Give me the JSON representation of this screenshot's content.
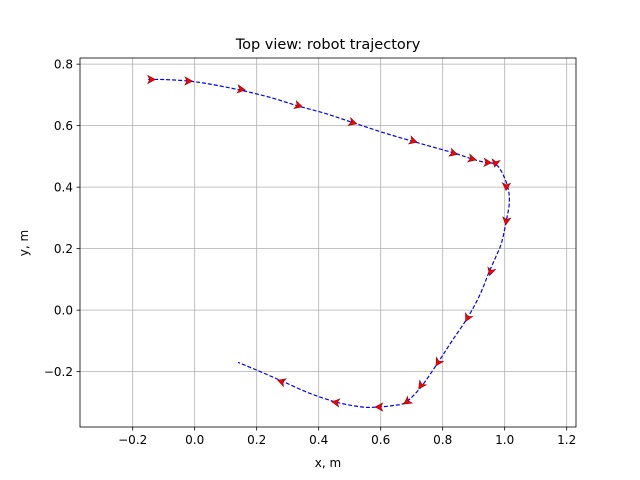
{
  "chart_data": {
    "type": "line",
    "title": "Top view: robot trajectory",
    "xlabel": "x, m",
    "ylabel": "y, m",
    "xlim": [
      -0.37,
      1.23
    ],
    "ylim": [
      -0.38,
      0.82
    ],
    "grid": true,
    "x_ticks": [
      -0.2,
      0.0,
      0.2,
      0.4,
      0.6,
      0.8,
      1.0,
      1.2
    ],
    "x_tick_labels": [
      "−0.2",
      "0.0",
      "0.2",
      "0.4",
      "0.6",
      "0.8",
      "1.0",
      "1.2"
    ],
    "y_ticks": [
      -0.2,
      0.0,
      0.2,
      0.4,
      0.6,
      0.8
    ],
    "y_tick_labels": [
      "−0.2",
      "0.0",
      "0.2",
      "0.4",
      "0.6",
      "0.8"
    ],
    "colors": {
      "path": "#0000ff",
      "arrows": "#ff0000",
      "arrow_edge": "#8b0000",
      "grid": "#b0b0b0"
    },
    "path": {
      "x": [
        -0.15,
        -0.1,
        -0.02,
        0.05,
        0.15,
        0.25,
        0.33,
        0.42,
        0.51,
        0.6,
        0.7,
        0.77,
        0.84,
        0.9,
        0.94,
        0.97,
        0.99,
        1.01,
        1.015,
        1.005,
        0.99,
        0.97,
        0.95,
        0.92,
        0.88,
        0.83,
        0.785,
        0.73,
        0.68,
        0.64,
        0.59,
        0.54,
        0.46,
        0.37,
        0.28,
        0.2,
        0.14
      ],
      "y": [
        0.75,
        0.75,
        0.745,
        0.735,
        0.715,
        0.69,
        0.665,
        0.64,
        0.61,
        0.58,
        0.55,
        0.53,
        0.51,
        0.49,
        0.48,
        0.475,
        0.45,
        0.4,
        0.35,
        0.29,
        0.22,
        0.17,
        0.125,
        0.05,
        -0.025,
        -0.1,
        -0.17,
        -0.25,
        -0.3,
        -0.31,
        -0.315,
        -0.315,
        -0.3,
        -0.27,
        -0.23,
        -0.195,
        -0.17
      ]
    },
    "arrows": [
      {
        "x": -0.14,
        "y": 0.75,
        "dx": 1,
        "dy": 0
      },
      {
        "x": -0.02,
        "y": 0.745,
        "dx": 1,
        "dy": -0.02
      },
      {
        "x": 0.15,
        "y": 0.718,
        "dx": 1,
        "dy": -0.13
      },
      {
        "x": 0.335,
        "y": 0.665,
        "dx": 1,
        "dy": -0.3
      },
      {
        "x": 0.51,
        "y": 0.61,
        "dx": 1,
        "dy": -0.31
      },
      {
        "x": 0.705,
        "y": 0.55,
        "dx": 1,
        "dy": -0.3
      },
      {
        "x": 0.835,
        "y": 0.51,
        "dx": 1,
        "dy": -0.3
      },
      {
        "x": 0.895,
        "y": 0.492,
        "dx": 1,
        "dy": -0.25
      },
      {
        "x": 0.945,
        "y": 0.48,
        "dx": 1,
        "dy": -0.05
      },
      {
        "x": 0.97,
        "y": 0.478,
        "dx": -0.2,
        "dy": -1
      },
      {
        "x": 1.005,
        "y": 0.402,
        "dx": -0.05,
        "dy": -1
      },
      {
        "x": 1.005,
        "y": 0.29,
        "dx": -0.15,
        "dy": -1
      },
      {
        "x": 0.955,
        "y": 0.125,
        "dx": -0.3,
        "dy": -1
      },
      {
        "x": 0.88,
        "y": -0.025,
        "dx": -0.5,
        "dy": -1
      },
      {
        "x": 0.785,
        "y": -0.17,
        "dx": -0.6,
        "dy": -1
      },
      {
        "x": 0.73,
        "y": -0.245,
        "dx": -0.7,
        "dy": -1
      },
      {
        "x": 0.685,
        "y": -0.298,
        "dx": -1,
        "dy": -0.7
      },
      {
        "x": 0.595,
        "y": -0.315,
        "dx": -1,
        "dy": 0
      },
      {
        "x": 0.455,
        "y": -0.3,
        "dx": -1,
        "dy": 0.15
      },
      {
        "x": 0.28,
        "y": -0.232,
        "dx": -1,
        "dy": 0.35
      }
    ]
  }
}
